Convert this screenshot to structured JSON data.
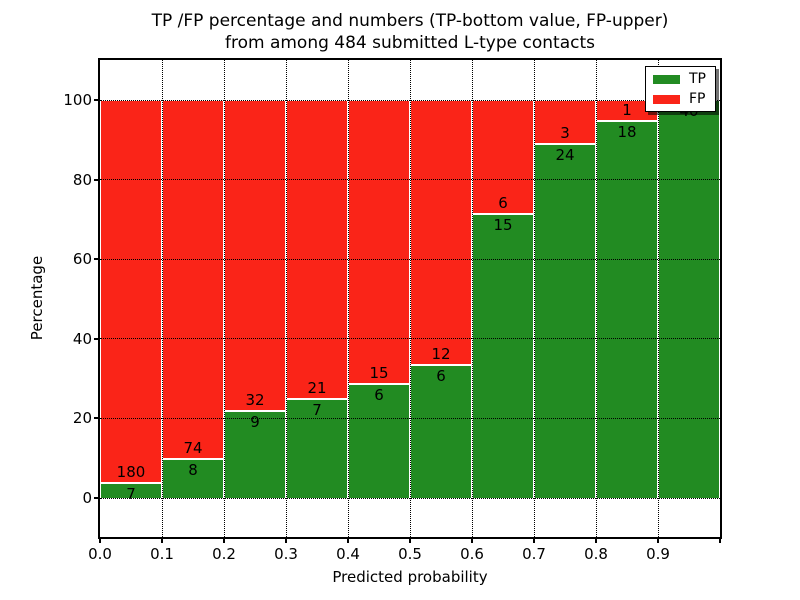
{
  "chart_data": {
    "type": "bar",
    "stacked": true,
    "unit": "percent",
    "title": "TP /FP percentage and numbers (TP-bottom value, FP-upper)",
    "subtitle": "from among 484 submitted L-type contacts",
    "xlabel": "Predicted probability",
    "ylabel": "Percentage",
    "total_contacts": 484,
    "annotation_note": "TP count printed at top of green segment, FP count printed at bottom of red segment",
    "categories": [
      "0.0-0.1",
      "0.1-0.2",
      "0.2-0.3",
      "0.3-0.4",
      "0.4-0.5",
      "0.5-0.6",
      "0.6-0.7",
      "0.7-0.8",
      "0.8-0.9",
      "0.9-1.0"
    ],
    "series": [
      {
        "name": "TP",
        "color": "#228b22",
        "counts": [
          7,
          8,
          9,
          7,
          6,
          6,
          15,
          24,
          18,
          40
        ]
      },
      {
        "name": "FP",
        "color": "#fa2418",
        "counts": [
          180,
          74,
          32,
          21,
          15,
          12,
          6,
          3,
          1,
          0
        ]
      }
    ],
    "bins": [
      {
        "range": "0.0-0.1",
        "tp": 7,
        "fp": 180,
        "tp_pct": 3.74,
        "fp_pct": 96.26
      },
      {
        "range": "0.1-0.2",
        "tp": 8,
        "fp": 74,
        "tp_pct": 9.76,
        "fp_pct": 90.24
      },
      {
        "range": "0.2-0.3",
        "tp": 9,
        "fp": 32,
        "tp_pct": 21.95,
        "fp_pct": 78.05
      },
      {
        "range": "0.3-0.4",
        "tp": 7,
        "fp": 21,
        "tp_pct": 25.0,
        "fp_pct": 75.0
      },
      {
        "range": "0.4-0.5",
        "tp": 6,
        "fp": 15,
        "tp_pct": 28.57,
        "fp_pct": 71.43
      },
      {
        "range": "0.5-0.6",
        "tp": 6,
        "fp": 12,
        "tp_pct": 33.33,
        "fp_pct": 66.67
      },
      {
        "range": "0.6-0.7",
        "tp": 15,
        "fp": 6,
        "tp_pct": 71.43,
        "fp_pct": 28.57
      },
      {
        "range": "0.7-0.8",
        "tp": 24,
        "fp": 3,
        "tp_pct": 88.89,
        "fp_pct": 11.11
      },
      {
        "range": "0.8-0.9",
        "tp": 18,
        "fp": 1,
        "tp_pct": 94.74,
        "fp_pct": 5.26
      },
      {
        "range": "0.9-1.0",
        "tp": 40,
        "fp": 0,
        "tp_pct": 100.0,
        "fp_pct": 0.0
      }
    ],
    "xticks": [
      "0.0",
      "0.1",
      "0.2",
      "0.3",
      "0.4",
      "0.5",
      "0.6",
      "0.7",
      "0.8",
      "0.9"
    ],
    "yticks": [
      0,
      20,
      40,
      60,
      80,
      100
    ],
    "xlim": [
      0.0,
      1.0
    ],
    "ylim": [
      -10,
      110
    ],
    "grid": true,
    "grid_style": "dotted",
    "legend": {
      "position": "upper right",
      "entries": [
        {
          "label": "TP",
          "color": "#228b22"
        },
        {
          "label": "FP",
          "color": "#fa2418"
        }
      ]
    },
    "colors": {
      "tp": "#228b22",
      "fp": "#fa2418",
      "bar_edge": "#ffffff",
      "grid": "#000000"
    }
  }
}
